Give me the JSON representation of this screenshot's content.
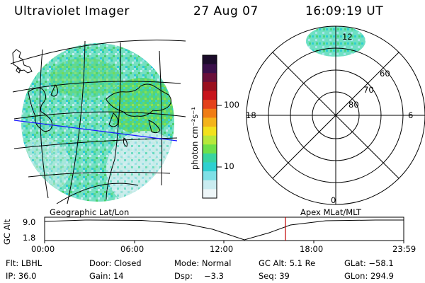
{
  "header": {
    "title": "Ultraviolet Imager",
    "date": "27 Aug 07",
    "time": "16:09:19 UT"
  },
  "colorbar": {
    "unit_label": "photon cm⁻²s⁻¹",
    "ticks": [
      "100",
      "10"
    ],
    "colors": [
      "#1b0b2a",
      "#3a0f4a",
      "#6a0f3a",
      "#9a0f1e",
      "#c8141c",
      "#e4411a",
      "#f07c14",
      "#f4b31a",
      "#f2e11c",
      "#b7e83a",
      "#6ee04a",
      "#38d4a0",
      "#2ed0d0",
      "#7ee0e6",
      "#c9ecf0",
      "#eef6f8"
    ]
  },
  "polar": {
    "lat_labels": [
      "60",
      "70",
      "80"
    ],
    "mlt_labels": {
      "top": "12",
      "left": "18",
      "right": "6",
      "bottom": "0"
    }
  },
  "altitude_plot": {
    "left_title": "Geographic Lat/Lon",
    "right_title": "Apex MLat/MLT",
    "axis_label": "GC Alt",
    "y_ticks": [
      "9.0",
      "1.8"
    ],
    "x_ticks": [
      "00:00",
      "06:00",
      "12:00",
      "18:00",
      "23:59"
    ]
  },
  "info": {
    "row1": {
      "flt": "Flt: LBHL",
      "door": "Door: Closed",
      "mode": "Mode: Normal",
      "gcalt": "GC Alt: 5.1 Re",
      "glat": "GLat: −58.1"
    },
    "row2": {
      "ip": "IP: 36.0",
      "gain": "Gain: 14",
      "dsp_label": "Dsp:",
      "dsp_value": "−3.3",
      "seq": "Seq: 39",
      "glon": "GLon: 294.9"
    }
  }
}
